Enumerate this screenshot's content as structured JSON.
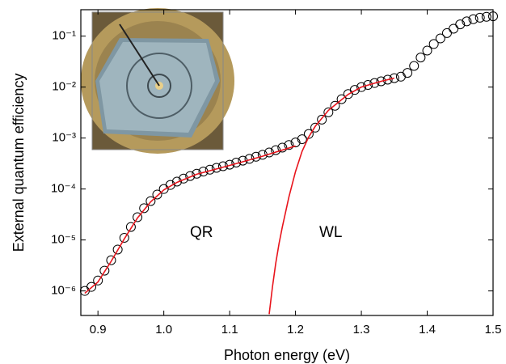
{
  "chart_data": {
    "type": "scatter",
    "x_label": "Photon energy (eV)",
    "y_label": "External quantum efficiency",
    "log_y": true,
    "xlim": [
      0.874,
      1.5
    ],
    "ylim": [
      3.3e-07,
      0.33
    ],
    "xticks": [
      0.9,
      {
        "value": 1,
        "label": "1.0"
      },
      1.1,
      1.2,
      1.3,
      1.4,
      1.5
    ],
    "yticks": [
      {
        "value": 1e-06,
        "label": "10⁻⁶"
      },
      {
        "value": 1e-05,
        "label": "10⁻⁵"
      },
      {
        "value": 0.0001,
        "label": "10⁻⁴"
      },
      {
        "value": 0.001,
        "label": "10⁻³"
      },
      {
        "value": 0.01,
        "label": "10⁻²"
      },
      {
        "value": 0.1,
        "label": "10⁻¹"
      }
    ],
    "annotations": [
      "QR",
      "WL"
    ],
    "series": [
      {
        "style": "markers",
        "color": "#000000",
        "x": [
          0.88,
          0.89,
          0.9,
          0.91,
          0.92,
          0.93,
          0.94,
          0.95,
          0.96,
          0.97,
          0.98,
          0.99,
          1.0,
          1.01,
          1.02,
          1.03,
          1.04,
          1.05,
          1.06,
          1.07,
          1.08,
          1.09,
          1.1,
          1.11,
          1.12,
          1.13,
          1.14,
          1.15,
          1.16,
          1.17,
          1.18,
          1.19,
          1.2,
          1.21,
          1.22,
          1.23,
          1.24,
          1.25,
          1.26,
          1.27,
          1.28,
          1.29,
          1.3,
          1.31,
          1.32,
          1.33,
          1.34,
          1.35,
          1.36,
          1.37,
          1.38,
          1.39,
          1.4,
          1.41,
          1.42,
          1.43,
          1.44,
          1.45,
          1.46,
          1.47,
          1.48,
          1.49,
          1.5
        ],
        "values": [
          1e-06,
          1.2e-06,
          1.6e-06,
          2.5e-06,
          4e-06,
          6.5e-06,
          1.1e-05,
          1.8e-05,
          2.8e-05,
          4.2e-05,
          5.8e-05,
          7.8e-05,
          0.0001,
          0.00012,
          0.00014,
          0.00016,
          0.00018,
          0.0002,
          0.00022,
          0.00024,
          0.00026,
          0.00028,
          0.0003,
          0.00033,
          0.00036,
          0.00039,
          0.00043,
          0.00047,
          0.00052,
          0.00058,
          0.00065,
          0.00073,
          0.00082,
          0.00095,
          0.0012,
          0.0016,
          0.0023,
          0.0032,
          0.0043,
          0.0058,
          0.0073,
          0.0088,
          0.01,
          0.011,
          0.012,
          0.013,
          0.014,
          0.015,
          0.016,
          0.019,
          0.026,
          0.038,
          0.052,
          0.07,
          0.09,
          0.115,
          0.14,
          0.17,
          0.195,
          0.215,
          0.23,
          0.24,
          0.245
        ]
      },
      {
        "style": "line",
        "color": "#e8141c",
        "x": [
          0.88,
          0.9,
          0.92,
          0.94,
          0.96,
          0.98,
          1.0,
          1.02,
          1.05,
          1.1,
          1.15,
          1.2
        ],
        "values": [
          9e-07,
          1.5e-06,
          3.8e-06,
          1.05e-05,
          2.7e-05,
          5.6e-05,
          9.6e-05,
          0.000135,
          0.000195,
          0.00029,
          0.00044,
          0.0007
        ]
      },
      {
        "style": "line",
        "color": "#e8141c",
        "x": [
          1.16,
          1.165,
          1.17,
          1.175,
          1.18,
          1.19,
          1.2,
          1.21,
          1.22,
          1.23,
          1.25,
          1.28,
          1.3,
          1.33,
          1.35
        ],
        "values": [
          3.5e-07,
          1.2e-06,
          3.5e-06,
          8.5e-06,
          1.8e-05,
          7e-05,
          0.00022,
          0.00055,
          0.00105,
          0.0017,
          0.0035,
          0.0072,
          0.01,
          0.013,
          0.015
        ]
      }
    ]
  }
}
